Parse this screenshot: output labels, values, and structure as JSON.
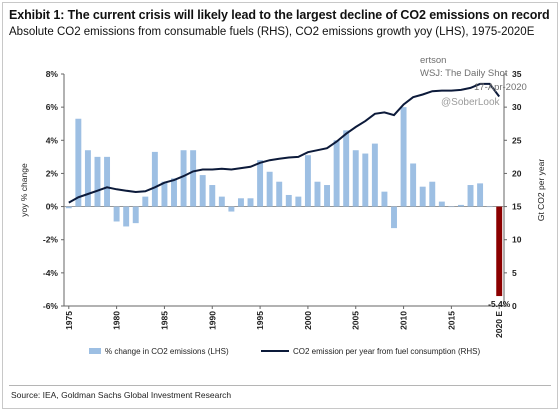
{
  "header": {
    "title": "Exhibit 1: The current crisis will likely lead to the largest decline of CO2 emissions on record",
    "subtitle": "Absolute CO2 emissions from consumable fuels (RHS), CO2 emissions growth yoy (LHS), 1975-2020E"
  },
  "watermark": {
    "line1": "ertson",
    "line2": "WSJ: The Daily Shot",
    "line3": "17-Apr-2020",
    "line4": "@SoberLook"
  },
  "source": "Source: IEA, Goldman Sachs Global Investment Research",
  "chart_data": {
    "type": "bar+line",
    "title": "",
    "ylabel_left": "yoy % change",
    "ylabel_right": "Gt CO2 per year",
    "ylim_left": [
      -6,
      8
    ],
    "ylim_right": [
      0,
      35
    ],
    "left_ticks": [
      "8%",
      "6%",
      "4%",
      "2%",
      "0%",
      "-2%",
      "-4%",
      "-6%"
    ],
    "right_ticks": [
      "35",
      "30",
      "25",
      "20",
      "15",
      "10",
      "5",
      "0"
    ],
    "x_tick_labels": [
      "1975",
      "1980",
      "1985",
      "1990",
      "1995",
      "2000",
      "2005",
      "2010",
      "2015",
      "2020 E"
    ],
    "x_tick_years": [
      1975,
      1980,
      1985,
      1990,
      1995,
      2000,
      2005,
      2010,
      2015,
      2020
    ],
    "bar_color": "#9dbfe3",
    "highlight_color": "#8b0000",
    "line_color": "#0c1a3a",
    "annotation": {
      "year": 2020,
      "text": "-5.4%"
    },
    "grid": false,
    "legend_position": "bottom",
    "series": [
      {
        "name": "% change in CO2 emissions (LHS)",
        "type": "bar",
        "axis": "left",
        "x": [
          1975,
          1976,
          1977,
          1978,
          1979,
          1980,
          1981,
          1982,
          1983,
          1984,
          1985,
          1986,
          1987,
          1988,
          1989,
          1990,
          1991,
          1992,
          1993,
          1994,
          1995,
          1996,
          1997,
          1998,
          1999,
          2000,
          2001,
          2002,
          2003,
          2004,
          2005,
          2006,
          2007,
          2008,
          2009,
          2010,
          2011,
          2012,
          2013,
          2014,
          2015,
          2016,
          2017,
          2018,
          2019,
          2020
        ],
        "values": [
          -0.1,
          5.3,
          3.4,
          3.0,
          3.0,
          -0.9,
          -1.2,
          -1.0,
          0.6,
          3.3,
          1.5,
          1.7,
          3.4,
          3.4,
          1.9,
          1.3,
          0.6,
          -0.3,
          0.5,
          0.5,
          2.8,
          2.1,
          1.5,
          0.7,
          0.6,
          3.1,
          1.5,
          1.3,
          4.0,
          4.6,
          3.4,
          3.2,
          3.8,
          0.9,
          -1.3,
          6.0,
          2.6,
          1.2,
          1.5,
          0.3,
          0.0,
          0.1,
          1.3,
          1.4,
          0.0,
          -5.4
        ]
      },
      {
        "name": "CO2 emission per year from fuel consumption (RHS)",
        "type": "line",
        "axis": "right",
        "x": [
          1975,
          1976,
          1977,
          1978,
          1979,
          1980,
          1981,
          1982,
          1983,
          1984,
          1985,
          1986,
          1987,
          1988,
          1989,
          1990,
          1991,
          1992,
          1993,
          1994,
          1995,
          1996,
          1997,
          1998,
          1999,
          2000,
          2001,
          2002,
          2003,
          2004,
          2005,
          2006,
          2007,
          2008,
          2009,
          2010,
          2011,
          2012,
          2013,
          2014,
          2015,
          2016,
          2017,
          2018,
          2019,
          2020
        ],
        "values": [
          15.6,
          16.4,
          16.9,
          17.4,
          17.9,
          17.6,
          17.4,
          17.2,
          17.3,
          17.9,
          18.6,
          19.0,
          19.6,
          20.3,
          20.6,
          20.6,
          20.7,
          20.6,
          20.8,
          21.0,
          21.6,
          22.0,
          22.2,
          22.4,
          22.5,
          23.2,
          23.5,
          23.8,
          24.8,
          26.0,
          27.0,
          27.9,
          29.0,
          29.2,
          28.8,
          30.4,
          31.5,
          31.9,
          32.4,
          32.5,
          32.5,
          32.6,
          32.9,
          33.5,
          33.5,
          31.6
        ]
      }
    ]
  }
}
